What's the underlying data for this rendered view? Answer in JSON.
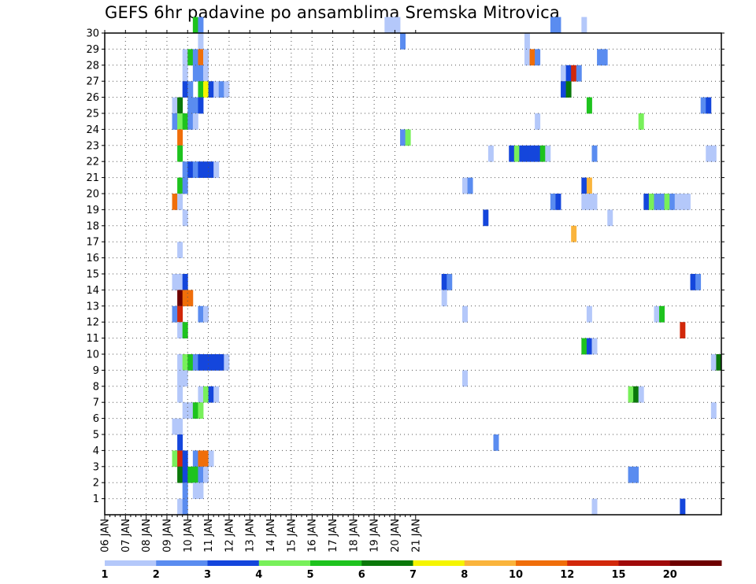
{
  "chart_data": {
    "type": "heatmap",
    "title": "GEFS 6hr padavine po ansamblima Sremska Mitrovica",
    "xlabel": "",
    "ylabel": "",
    "x_tick_labels": [
      "06 JAN",
      "07 JAN",
      "08 JAN",
      "09 JAN",
      "10 JAN",
      "11 JAN",
      "12 JAN",
      "13 JAN",
      "14 JAN",
      "15 JAN",
      "16 JAN",
      "17 JAN",
      "18 JAN",
      "19 JAN",
      "20 JAN",
      "21 JAN"
    ],
    "x_step": "6 hr",
    "y_tick_labels": [
      "1",
      "2",
      "3",
      "4",
      "5",
      "6",
      "7",
      "8",
      "9",
      "10",
      "11",
      "12",
      "13",
      "14",
      "15",
      "16",
      "17",
      "18",
      "19",
      "20",
      "21",
      "22",
      "23",
      "24",
      "25",
      "26",
      "27",
      "28",
      "29",
      "30"
    ],
    "ylim": [
      0,
      30
    ],
    "grid": true,
    "color_scale": {
      "labels": [
        "1",
        "2",
        "3",
        "4",
        "5",
        "6",
        "7",
        "8",
        "10",
        "12",
        "15",
        "20"
      ],
      "colors": [
        "#b4c8fa",
        "#5a8cf0",
        "#1446dc",
        "#78f05a",
        "#1ec31e",
        "#0a780a",
        "#f5f500",
        "#fab43c",
        "#f06e0a",
        "#d2280a",
        "#a00a0a",
        "#6e0000"
      ]
    },
    "cell_format": "[member, time_step_index from 06 JAN 00z, precip_mm]",
    "cells": [
      [
        30,
        17,
        5
      ],
      [
        30,
        18,
        2
      ],
      [
        30,
        54,
        1
      ],
      [
        30,
        55,
        1
      ],
      [
        30,
        56,
        1
      ],
      [
        30,
        86,
        2
      ],
      [
        30,
        87,
        2
      ],
      [
        30,
        92,
        1
      ],
      [
        29,
        18,
        1
      ],
      [
        29,
        57,
        2
      ],
      [
        29,
        81,
        1
      ],
      [
        28,
        15,
        1
      ],
      [
        28,
        16,
        5
      ],
      [
        28,
        17,
        2
      ],
      [
        28,
        18,
        10
      ],
      [
        28,
        19,
        1
      ],
      [
        28,
        81,
        1
      ],
      [
        28,
        82,
        10
      ],
      [
        28,
        83,
        2
      ],
      [
        28,
        95,
        2
      ],
      [
        28,
        96,
        2
      ],
      [
        27,
        15,
        1
      ],
      [
        27,
        17,
        2
      ],
      [
        27,
        18,
        2
      ],
      [
        27,
        19,
        1
      ],
      [
        27,
        88,
        1
      ],
      [
        27,
        89,
        3
      ],
      [
        27,
        90,
        12
      ],
      [
        27,
        91,
        2
      ],
      [
        26,
        15,
        3
      ],
      [
        26,
        16,
        2
      ],
      [
        26,
        18,
        5
      ],
      [
        26,
        19,
        7
      ],
      [
        26,
        20,
        3
      ],
      [
        26,
        21,
        1
      ],
      [
        26,
        22,
        2
      ],
      [
        26,
        23,
        1
      ],
      [
        26,
        88,
        3
      ],
      [
        26,
        89,
        6
      ],
      [
        25,
        13,
        1
      ],
      [
        25,
        14,
        6
      ],
      [
        25,
        16,
        2
      ],
      [
        25,
        17,
        2
      ],
      [
        25,
        18,
        3
      ],
      [
        25,
        93,
        5
      ],
      [
        25,
        115,
        2
      ],
      [
        25,
        116,
        3
      ],
      [
        24,
        13,
        2
      ],
      [
        24,
        14,
        4
      ],
      [
        24,
        15,
        5
      ],
      [
        24,
        16,
        2
      ],
      [
        24,
        17,
        1
      ],
      [
        24,
        83,
        1
      ],
      [
        24,
        103,
        4
      ],
      [
        23,
        14,
        10
      ],
      [
        23,
        57,
        2
      ],
      [
        23,
        58,
        4
      ],
      [
        22,
        14,
        5
      ],
      [
        22,
        74,
        1
      ],
      [
        22,
        78,
        3
      ],
      [
        22,
        79,
        4
      ],
      [
        22,
        80,
        3
      ],
      [
        22,
        81,
        3
      ],
      [
        22,
        82,
        3
      ],
      [
        22,
        83,
        3
      ],
      [
        22,
        84,
        5
      ],
      [
        22,
        85,
        1
      ],
      [
        22,
        94,
        2
      ],
      [
        22,
        116,
        1
      ],
      [
        22,
        117,
        1
      ],
      [
        21,
        15,
        2
      ],
      [
        21,
        16,
        3
      ],
      [
        21,
        17,
        2
      ],
      [
        21,
        18,
        3
      ],
      [
        21,
        19,
        3
      ],
      [
        21,
        20,
        3
      ],
      [
        21,
        21,
        1
      ],
      [
        20,
        14,
        5
      ],
      [
        20,
        15,
        2
      ],
      [
        20,
        69,
        1
      ],
      [
        20,
        70,
        2
      ],
      [
        20,
        92,
        3
      ],
      [
        20,
        93,
        8
      ],
      [
        19,
        13,
        10
      ],
      [
        19,
        14,
        1
      ],
      [
        19,
        86,
        2
      ],
      [
        19,
        87,
        3
      ],
      [
        19,
        92,
        1
      ],
      [
        19,
        93,
        1
      ],
      [
        19,
        94,
        1
      ],
      [
        19,
        104,
        3
      ],
      [
        19,
        105,
        4
      ],
      [
        19,
        106,
        2
      ],
      [
        19,
        107,
        2
      ],
      [
        19,
        108,
        4
      ],
      [
        19,
        109,
        2
      ],
      [
        19,
        110,
        1
      ],
      [
        19,
        111,
        1
      ],
      [
        19,
        112,
        1
      ],
      [
        18,
        15,
        1
      ],
      [
        18,
        73,
        3
      ],
      [
        18,
        97,
        1
      ],
      [
        17,
        90,
        8
      ],
      [
        16,
        14,
        1
      ],
      [
        14,
        13,
        1
      ],
      [
        14,
        14,
        1
      ],
      [
        14,
        15,
        3
      ],
      [
        14,
        65,
        3
      ],
      [
        14,
        66,
        2
      ],
      [
        14,
        113,
        3
      ],
      [
        14,
        114,
        2
      ],
      [
        13,
        14,
        20
      ],
      [
        13,
        15,
        10
      ],
      [
        13,
        16,
        10
      ],
      [
        13,
        65,
        1
      ],
      [
        12,
        13,
        2
      ],
      [
        12,
        14,
        12
      ],
      [
        12,
        18,
        2
      ],
      [
        12,
        19,
        1
      ],
      [
        12,
        69,
        1
      ],
      [
        12,
        93,
        1
      ],
      [
        12,
        106,
        1
      ],
      [
        12,
        107,
        5
      ],
      [
        11,
        14,
        1
      ],
      [
        11,
        15,
        5
      ],
      [
        11,
        111,
        12
      ],
      [
        10,
        92,
        5
      ],
      [
        10,
        93,
        3
      ],
      [
        10,
        94,
        1
      ],
      [
        9,
        14,
        1
      ],
      [
        9,
        15,
        4
      ],
      [
        9,
        16,
        5
      ],
      [
        9,
        17,
        2
      ],
      [
        9,
        18,
        3
      ],
      [
        9,
        19,
        3
      ],
      [
        9,
        20,
        3
      ],
      [
        9,
        21,
        3
      ],
      [
        9,
        22,
        3
      ],
      [
        9,
        23,
        1
      ],
      [
        9,
        117,
        1
      ],
      [
        9,
        118,
        6
      ],
      [
        8,
        14,
        1
      ],
      [
        8,
        15,
        1
      ],
      [
        8,
        69,
        1
      ],
      [
        7,
        14,
        1
      ],
      [
        7,
        18,
        1
      ],
      [
        7,
        19,
        4
      ],
      [
        7,
        20,
        3
      ],
      [
        7,
        21,
        1
      ],
      [
        7,
        101,
        4
      ],
      [
        7,
        102,
        6
      ],
      [
        7,
        103,
        1
      ],
      [
        6,
        15,
        1
      ],
      [
        6,
        16,
        1
      ],
      [
        6,
        17,
        5
      ],
      [
        6,
        18,
        4
      ],
      [
        6,
        117,
        1
      ],
      [
        5,
        13,
        1
      ],
      [
        5,
        14,
        1
      ],
      [
        4,
        14,
        3
      ],
      [
        4,
        75,
        2
      ],
      [
        3,
        13,
        4
      ],
      [
        3,
        14,
        12
      ],
      [
        3,
        15,
        3
      ],
      [
        3,
        17,
        2
      ],
      [
        3,
        18,
        10
      ],
      [
        3,
        19,
        10
      ],
      [
        3,
        20,
        1
      ],
      [
        2,
        14,
        6
      ],
      [
        2,
        15,
        3
      ],
      [
        2,
        16,
        5
      ],
      [
        2,
        17,
        5
      ],
      [
        2,
        18,
        2
      ],
      [
        2,
        19,
        1
      ],
      [
        2,
        101,
        2
      ],
      [
        2,
        102,
        2
      ],
      [
        1,
        15,
        2
      ],
      [
        1,
        17,
        1
      ],
      [
        1,
        18,
        1
      ],
      [
        0,
        14,
        1
      ],
      [
        0,
        15,
        2
      ],
      [
        0,
        94,
        1
      ],
      [
        0,
        111,
        3
      ]
    ]
  }
}
